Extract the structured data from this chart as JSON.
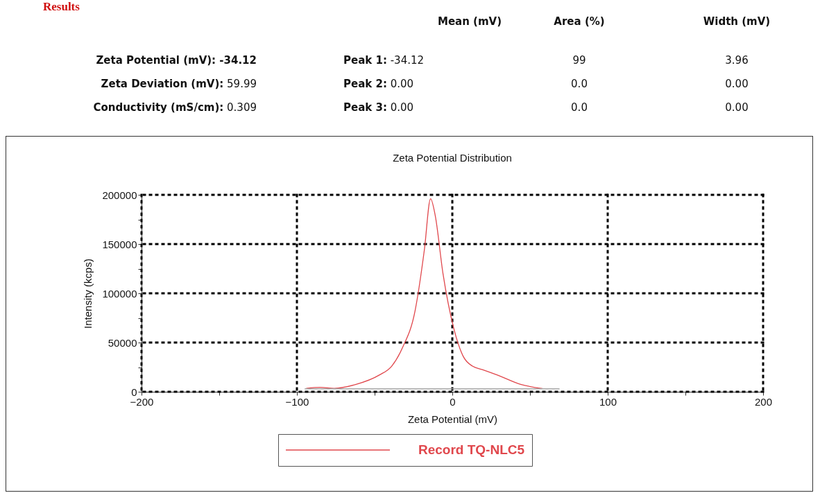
{
  "chart_data": {
    "type": "line",
    "title": "Zeta Potential Distribution",
    "xlabel": "Zeta Potential (mV)",
    "ylabel": "Intensity (kcps)",
    "annotations": [
      "Results",
      "Mean (mV)",
      "Area (%)",
      "Width (mV)",
      "Zeta Potential (mV): -34.12",
      "Peak 1: -34.12",
      "99",
      "3.96",
      "Zeta Deviation (mV): 59.99",
      "Peak 2: 0.00",
      "0.0",
      "0.00",
      "Conductivity (mS/cm): 0.309",
      "Peak 3: 0.00",
      "0.0",
      "0.00"
    ],
    "series": [
      {
        "name": "Record TQ-NLC5",
        "color": "#e0474c",
        "x": [
          -94,
          -85,
          -76,
          -62,
          -47,
          -39,
          -32,
          -24,
          -18,
          -14,
          -11,
          -6,
          1,
          7,
          13,
          19,
          29,
          44,
          58
        ],
        "values": [
          3500,
          4500,
          3500,
          7500,
          17000,
          26000,
          45000,
          82000,
          144000,
          196000,
          179000,
          120000,
          64000,
          36000,
          26000,
          22700,
          17000,
          7500,
          3300
        ]
      },
      {
        "color": "#a6a6a6",
        "x": [
          -95,
          69
        ],
        "values": [
          3000,
          3000
        ]
      }
    ],
    "xlim": [
      -200,
      200
    ],
    "xticks": [
      -200,
      {
        "value": -150,
        "label": null
      },
      -100,
      {
        "value": -50,
        "label": null
      },
      0,
      {
        "value": 50,
        "label": null
      },
      100,
      {
        "value": 150,
        "label": null
      },
      200
    ],
    "ylim": [
      0,
      200000
    ],
    "yticks": [
      0,
      {
        "value": 25000,
        "label": null
      },
      50000,
      {
        "value": 75000,
        "label": null
      },
      100000,
      {
        "value": 125000,
        "label": null
      },
      150000,
      {
        "value": 175000,
        "label": null
      },
      200000
    ],
    "grid": true,
    "legend": "bottom",
    "line_style": "solid",
    "marker": "none"
  }
}
